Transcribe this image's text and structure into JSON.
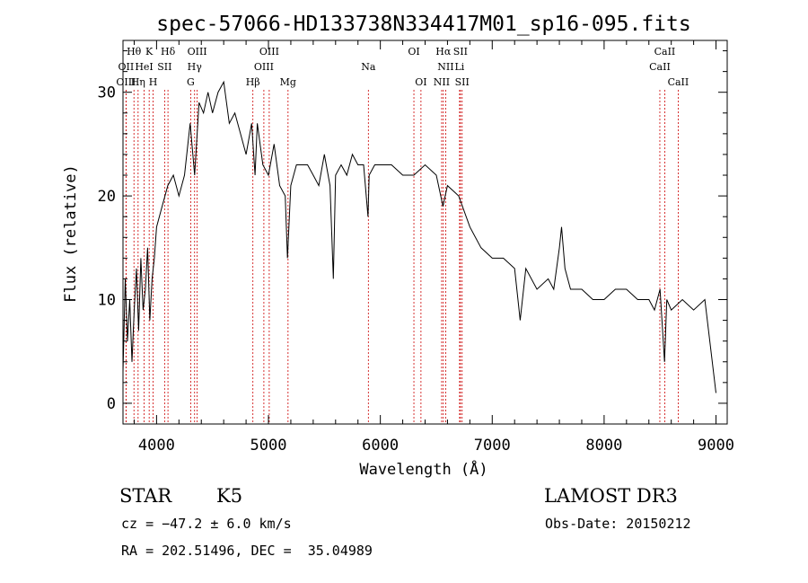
{
  "chart_data": {
    "type": "line",
    "title": "spec-57066-HD133738N334417M01_sp16-095.fits",
    "xlabel": "Wavelength (Å)",
    "ylabel": "Flux (relative)",
    "xlim": [
      3700,
      9100
    ],
    "ylim": [
      -2,
      35
    ],
    "xticks": [
      4000,
      5000,
      6000,
      7000,
      8000,
      9000
    ],
    "yticks": [
      0,
      10,
      20,
      30
    ],
    "grid": false,
    "series": [
      {
        "x": [
          3700,
          3720,
          3740,
          3760,
          3780,
          3800,
          3820,
          3840,
          3860,
          3880,
          3900,
          3920,
          3940,
          3960,
          3980,
          4000,
          4050,
          4100,
          4150,
          4200,
          4250,
          4300,
          4340,
          4380,
          4420,
          4460,
          4500,
          4550,
          4600,
          4650,
          4700,
          4750,
          4800,
          4850,
          4880,
          4900,
          4950,
          5000,
          5050,
          5100,
          5150,
          5170,
          5200,
          5250,
          5300,
          5350,
          5400,
          5450,
          5500,
          5550,
          5580,
          5600,
          5650,
          5700,
          5750,
          5800,
          5850,
          5890,
          5900,
          5950,
          6000,
          6100,
          6200,
          6300,
          6400,
          6500,
          6560,
          6600,
          6700,
          6800,
          6900,
          7000,
          7100,
          7200,
          7250,
          7300,
          7400,
          7500,
          7550,
          7600,
          7620,
          7650,
          7700,
          7800,
          7900,
          8000,
          8100,
          8200,
          8300,
          8400,
          8450,
          8500,
          8540,
          8560,
          8600,
          8700,
          8800,
          8900,
          9000
        ],
        "y": [
          3,
          12,
          6,
          10,
          4,
          9,
          13,
          7,
          14,
          9,
          11,
          15,
          8,
          12,
          14,
          17,
          19,
          21,
          22,
          20,
          22,
          27,
          22,
          29,
          28,
          30,
          28,
          30,
          31,
          27,
          28,
          26,
          24,
          27,
          22,
          27,
          23,
          22,
          25,
          21,
          20,
          14,
          21,
          23,
          23,
          23,
          22,
          21,
          24,
          21,
          12,
          22,
          23,
          22,
          24,
          23,
          23,
          18,
          22,
          23,
          23,
          23,
          22,
          22,
          23,
          22,
          19,
          21,
          20,
          17,
          15,
          14,
          14,
          13,
          8,
          13,
          11,
          12,
          11,
          15,
          17,
          13,
          11,
          11,
          10,
          10,
          11,
          11,
          10,
          10,
          9,
          11,
          4,
          10,
          9,
          10,
          9,
          10,
          1
        ]
      }
    ],
    "line_markers": [
      {
        "label": "Hθ",
        "wl": 3798,
        "row": 1
      },
      {
        "label": "OII",
        "wl": 3727,
        "row": 2
      },
      {
        "label": "OIII",
        "wl": 3727,
        "row": 3
      },
      {
        "label": "K",
        "wl": 3934,
        "row": 1
      },
      {
        "label": "HeI",
        "wl": 3889,
        "row": 2
      },
      {
        "label": "Hη",
        "wl": 3835,
        "row": 3
      },
      {
        "label": "Hδ",
        "wl": 4102,
        "row": 1
      },
      {
        "label": "SII",
        "wl": 4072,
        "row": 2
      },
      {
        "label": "H",
        "wl": 3969,
        "row": 3
      },
      {
        "label": "OIII",
        "wl": 4363,
        "row": 1
      },
      {
        "label": "Hγ",
        "wl": 4340,
        "row": 2
      },
      {
        "label": "G",
        "wl": 4305,
        "row": 3
      },
      {
        "label": "OIII",
        "wl": 5007,
        "row": 1
      },
      {
        "label": "OIII",
        "wl": 4959,
        "row": 2
      },
      {
        "label": "Hβ",
        "wl": 4861,
        "row": 3
      },
      {
        "label": "Mg",
        "wl": 5175,
        "row": 3
      },
      {
        "label": "Na",
        "wl": 5893,
        "row": 2
      },
      {
        "label": "OI",
        "wl": 6300,
        "row": 1
      },
      {
        "label": "OI",
        "wl": 6363,
        "row": 3
      },
      {
        "label": "Hα",
        "wl": 6563,
        "row": 1
      },
      {
        "label": "SII",
        "wl": 6716,
        "row": 1
      },
      {
        "label": "NII",
        "wl": 6584,
        "row": 2
      },
      {
        "label": "Li",
        "wl": 6708,
        "row": 2
      },
      {
        "label": "NII",
        "wl": 6548,
        "row": 3
      },
      {
        "label": "SII",
        "wl": 6731,
        "row": 3
      },
      {
        "label": "CaII",
        "wl": 8542,
        "row": 1
      },
      {
        "label": "CaII",
        "wl": 8498,
        "row": 2
      },
      {
        "label": "CaII",
        "wl": 8662,
        "row": 3
      }
    ]
  },
  "info": {
    "object_class": "STAR",
    "subclass": "K5",
    "survey": "LAMOST DR3",
    "cz": "cz = −47.2 ± 6.0 km/s",
    "obs_date": "Obs-Date: 20150212",
    "coords": "RA = 202.51496, DEC =  35.04989"
  }
}
